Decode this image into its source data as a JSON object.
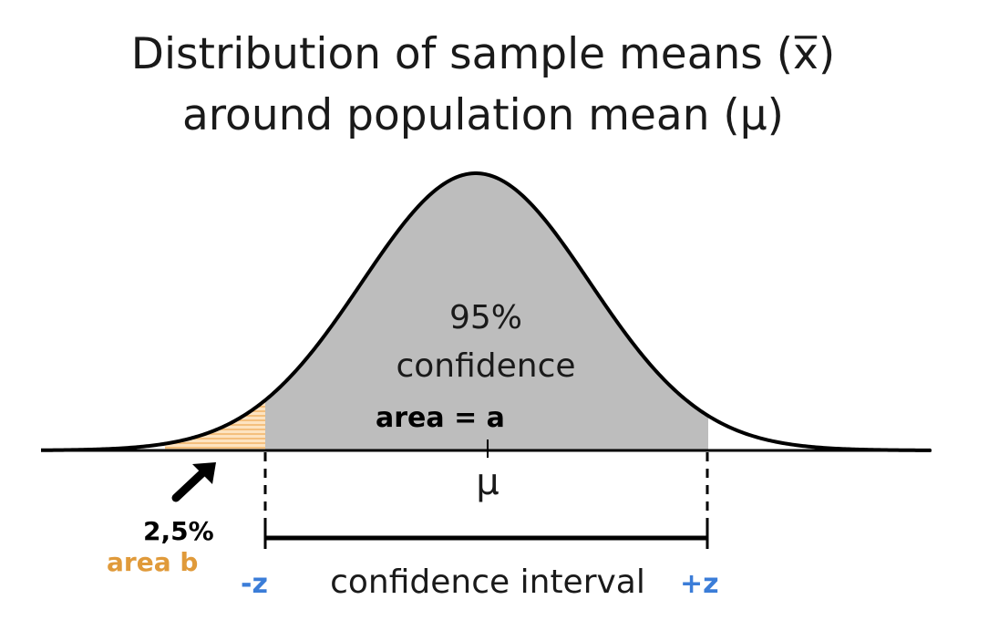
{
  "title": {
    "line1": "Distribution of sample means (x̅)",
    "line2": "around population mean (μ)"
  },
  "center_label": {
    "percent": "95%",
    "word": "confidence"
  },
  "annotations": {
    "area_a": "area = a",
    "mu": "μ",
    "tail_percent": "2,5%",
    "area_b": "area b",
    "minus_z": "-z",
    "plus_z": "+z",
    "interval": "confidence interval"
  },
  "colors": {
    "curve": "#000000",
    "confidence_fill": "#bdbdbd",
    "tail_hatch": "#f2b66c",
    "area_b_text": "#e09a3a",
    "z_text": "#3b7dd8"
  },
  "icons": {
    "tail_arrow": "arrow-up-right-icon"
  }
}
